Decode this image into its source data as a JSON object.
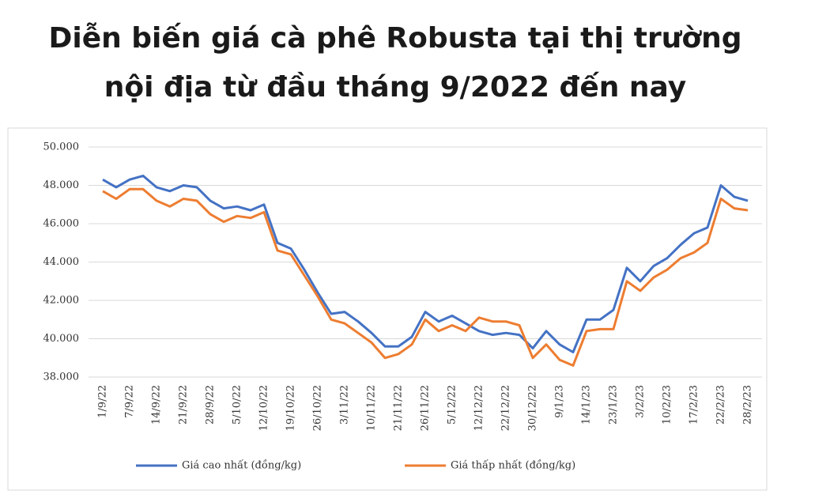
{
  "chart_data": {
    "type": "line",
    "title": [
      "Diễn biến giá cà phê Robusta tại thị trường",
      "nội địa từ đầu tháng 9/2022 đến nay"
    ],
    "categories": [
      "1/9/22",
      null,
      "7/9/22",
      null,
      "14/9/22",
      null,
      "21/9/22",
      null,
      "28/9/22",
      null,
      "5/10/22",
      null,
      "12/10/22",
      null,
      "19/10/22",
      null,
      "26/10/22",
      null,
      "3/11/22",
      null,
      "10/11/22",
      null,
      "21/11/22",
      null,
      "26/11/22",
      null,
      "5/12/22",
      null,
      "12/12/22",
      null,
      "22/12/22",
      null,
      "30/12/22",
      null,
      "9/1/23",
      null,
      "14/1/23",
      null,
      "23/1/23",
      null,
      "3/2/23",
      null,
      "10/2/23",
      null,
      "17/2/23",
      null,
      "22/2/23",
      null,
      "28/2/23"
    ],
    "series": [
      {
        "name": "Giá cao nhất (đồng/kg)",
        "color": "#4472c4",
        "values": [
          48300,
          47900,
          48300,
          48500,
          47900,
          47700,
          48000,
          47900,
          47200,
          46800,
          46900,
          46700,
          47000,
          45000,
          44700,
          43600,
          42400,
          41300,
          41400,
          40900,
          40300,
          39600,
          39600,
          40100,
          41400,
          40900,
          41200,
          40800,
          40400,
          40200,
          40300,
          40200,
          39500,
          40400,
          39700,
          39300,
          41000,
          41000,
          41500,
          43700,
          43000,
          43800,
          44200,
          44900,
          45500,
          45800,
          48000,
          47400,
          47200
        ]
      },
      {
        "name": "Giá thấp nhất (đồng/kg)",
        "color": "#ed7d31",
        "values": [
          47700,
          47300,
          47800,
          47800,
          47200,
          46900,
          47300,
          47200,
          46500,
          46100,
          46400,
          46300,
          46600,
          44600,
          44400,
          43300,
          42200,
          41000,
          40800,
          40300,
          39800,
          39000,
          39200,
          39700,
          41000,
          40400,
          40700,
          40400,
          41100,
          40900,
          40900,
          40700,
          39000,
          39700,
          38900,
          38600,
          40400,
          40500,
          40500,
          43000,
          42500,
          43200,
          43600,
          44200,
          44500,
          45000,
          47300,
          46800,
          46700
        ]
      }
    ],
    "ylim": [
      38000,
      50000
    ],
    "yticks": [
      {
        "value": 38000,
        "label": "38.000"
      },
      {
        "value": 40000,
        "label": "40.000"
      },
      {
        "value": 42000,
        "label": "42.000"
      },
      {
        "value": 44000,
        "label": "44.000"
      },
      {
        "value": 46000,
        "label": "46.000"
      },
      {
        "value": 48000,
        "label": "48.000"
      },
      {
        "value": 50000,
        "label": "50.000"
      }
    ],
    "grid": true,
    "legend": "bottom"
  }
}
